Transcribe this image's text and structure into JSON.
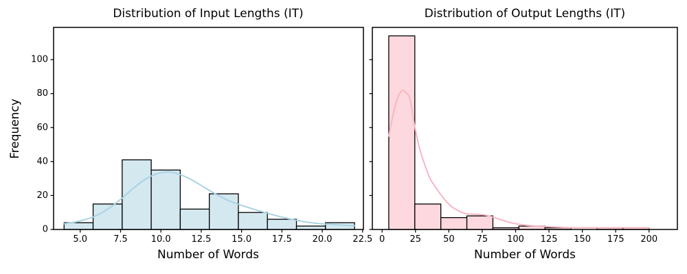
{
  "figure": {
    "background": "#ffffff",
    "text_color": "#000000"
  },
  "chart_data": [
    {
      "type": "bar",
      "subtype": "histogram_with_kde",
      "title": "Distribution of Input Lengths (IT)",
      "xlabel": "Number of Words",
      "ylabel": "Frequency",
      "bin_start": 4.0,
      "bin_width": 1.8,
      "bin_edges": [
        4.0,
        5.8,
        7.6,
        9.4,
        11.2,
        13.0,
        14.8,
        16.6,
        18.4,
        20.2,
        22.0
      ],
      "counts": [
        4,
        15,
        41,
        35,
        12,
        21,
        10,
        6,
        2,
        4
      ],
      "total_samples": 150,
      "kde_line": [
        [
          4.0,
          3.4
        ],
        [
          4.6,
          4.2
        ],
        [
          5.2,
          5.6
        ],
        [
          5.8,
          7.4
        ],
        [
          6.4,
          10.2
        ],
        [
          7.0,
          14.0
        ],
        [
          7.6,
          18.5
        ],
        [
          8.2,
          23.5
        ],
        [
          8.8,
          28.0
        ],
        [
          9.4,
          31.5
        ],
        [
          10.0,
          33.4
        ],
        [
          10.6,
          33.8
        ],
        [
          11.2,
          32.3
        ],
        [
          11.8,
          29.8
        ],
        [
          12.4,
          26.5
        ],
        [
          13.0,
          23.0
        ],
        [
          13.6,
          19.8
        ],
        [
          14.2,
          17.0
        ],
        [
          14.8,
          14.8
        ],
        [
          15.4,
          13.0
        ],
        [
          16.0,
          11.2
        ],
        [
          16.6,
          9.6
        ],
        [
          17.2,
          8.0
        ],
        [
          17.8,
          6.6
        ],
        [
          18.4,
          5.4
        ],
        [
          19.0,
          4.4
        ],
        [
          19.6,
          3.7
        ],
        [
          20.2,
          3.2
        ],
        [
          20.8,
          2.8
        ],
        [
          21.4,
          2.5
        ],
        [
          22.0,
          2.2
        ]
      ],
      "xticks": [
        5.0,
        7.5,
        10.0,
        12.5,
        15.0,
        17.5,
        20.0,
        22.5
      ],
      "xtick_labels": [
        "5.0",
        "7.5",
        "10.0",
        "12.5",
        "15.0",
        "17.5",
        "20.0",
        "22.5"
      ],
      "yticks": [
        0,
        20,
        40,
        60,
        80,
        100
      ],
      "ytick_labels": [
        "0",
        "20",
        "40",
        "60",
        "80",
        "100"
      ],
      "show_ytick_labels": true,
      "xlim": [
        3.35,
        22.55
      ],
      "ylim": [
        0,
        119
      ],
      "grid": false,
      "legend": "none",
      "bar_fill": "#d4e8f0",
      "bar_edge": "#000000",
      "kde_color": "#a8d2e3"
    },
    {
      "type": "bar",
      "subtype": "histogram_with_kde",
      "title": "Distribution of Output Lengths (IT)",
      "xlabel": "Number of Words",
      "ylabel": "",
      "bin_start": 5.0,
      "bin_width": 19.5,
      "bin_edges": [
        5.0,
        24.5,
        44.0,
        63.5,
        83.0,
        102.5,
        122.0,
        141.5,
        161.0,
        180.5,
        200.0
      ],
      "counts": [
        114,
        15,
        7,
        8,
        1,
        2,
        1,
        0,
        1,
        1
      ],
      "total_samples": 150,
      "kde_line": [
        [
          5.0,
          55.0
        ],
        [
          7.0,
          63.0
        ],
        [
          9.0,
          70.0
        ],
        [
          11.0,
          76.0
        ],
        [
          13.0,
          80.0
        ],
        [
          15.5,
          82.0
        ],
        [
          18.0,
          80.5
        ],
        [
          21.0,
          76.5
        ],
        [
          24.5,
          60.5
        ],
        [
          28.0,
          48.0
        ],
        [
          32.0,
          38.0
        ],
        [
          36.0,
          30.0
        ],
        [
          40.0,
          25.0
        ],
        [
          44.0,
          20.5
        ],
        [
          48.0,
          16.5
        ],
        [
          52.0,
          13.5
        ],
        [
          56.0,
          11.5
        ],
        [
          60.0,
          10.0
        ],
        [
          64.0,
          9.2
        ],
        [
          68.0,
          9.0
        ],
        [
          72.0,
          8.9
        ],
        [
          76.0,
          8.6
        ],
        [
          80.0,
          8.0
        ],
        [
          85.0,
          6.8
        ],
        [
          90.0,
          5.5
        ],
        [
          95.0,
          4.3
        ],
        [
          100.0,
          3.4
        ],
        [
          110.0,
          2.3
        ],
        [
          120.0,
          1.8
        ],
        [
          130.0,
          1.4
        ],
        [
          140.0,
          1.1
        ],
        [
          150.0,
          1.0
        ],
        [
          160.0,
          1.0
        ],
        [
          170.0,
          1.0
        ],
        [
          180.0,
          1.05
        ],
        [
          190.0,
          1.0
        ],
        [
          200.0,
          0.9
        ]
      ],
      "xticks": [
        0,
        25,
        50,
        75,
        100,
        125,
        150,
        175,
        200
      ],
      "xtick_labels": [
        "0",
        "25",
        "50",
        "75",
        "100",
        "125",
        "150",
        "175",
        "200"
      ],
      "yticks": [
        0,
        20,
        40,
        60,
        80,
        100
      ],
      "ytick_labels": [
        "0",
        "20",
        "40",
        "60",
        "80",
        "100"
      ],
      "show_ytick_labels": false,
      "xlim": [
        -7.3,
        221.2
      ],
      "ylim": [
        0,
        119
      ],
      "grid": false,
      "legend": "none",
      "bar_fill": "#fdd8de",
      "bar_edge": "#000000",
      "kde_color": "#f7b6c2"
    }
  ]
}
